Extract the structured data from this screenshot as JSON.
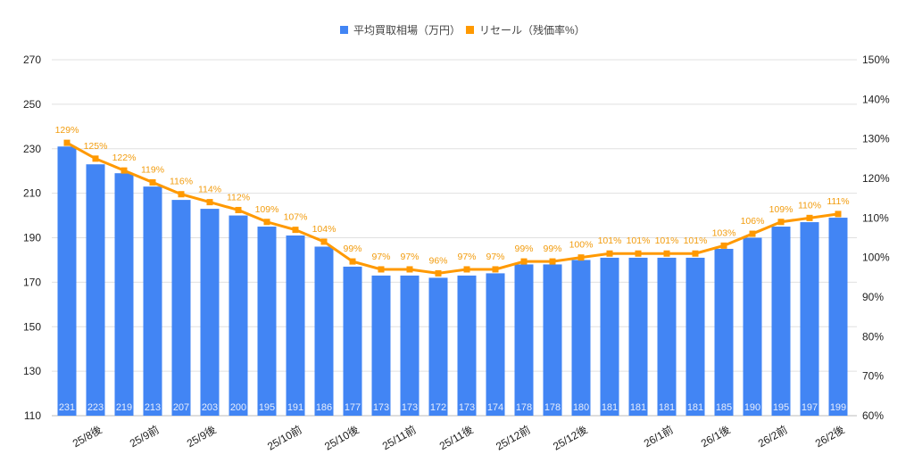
{
  "chart_data": {
    "type": "bar+line",
    "categories": [
      "",
      "25/8後",
      "",
      "25/9前",
      "",
      "25/9後",
      "",
      "",
      "25/10前",
      "",
      "25/10後",
      "",
      "25/11前",
      "",
      "25/11後",
      "",
      "25/12前",
      "",
      "25/12後",
      "",
      "",
      "26/1前",
      "",
      "26/1後",
      "",
      "26/2前",
      "",
      "26/2後"
    ],
    "series": [
      {
        "name": "平均買取相場（万円）",
        "type": "bar",
        "axis": "left",
        "color": "#4285f4",
        "values": [
          231,
          223,
          219,
          213,
          207,
          203,
          200,
          195,
          191,
          186,
          177,
          173,
          173,
          172,
          173,
          174,
          178,
          178,
          180,
          181,
          181,
          181,
          181,
          185,
          190,
          195,
          197,
          199
        ]
      },
      {
        "name": "リセール（残価率%）",
        "type": "line",
        "axis": "right",
        "color": "#ff9900",
        "values": [
          129,
          125,
          122,
          119,
          116,
          114,
          112,
          109,
          107,
          104,
          99,
          97,
          97,
          96,
          97,
          97,
          99,
          99,
          100,
          101,
          101,
          101,
          101,
          103,
          106,
          109,
          110,
          111
        ]
      }
    ],
    "y_left": {
      "range": [
        110,
        270
      ],
      "ticks": [
        "110",
        "130",
        "150",
        "170",
        "190",
        "210",
        "230",
        "250",
        "270"
      ]
    },
    "y_right": {
      "range": [
        60,
        150
      ],
      "ticks": [
        "60%",
        "70%",
        "80%",
        "90%",
        "100%",
        "110%",
        "120%",
        "130%",
        "140%",
        "150%"
      ]
    },
    "legend": "top",
    "grid": true
  }
}
